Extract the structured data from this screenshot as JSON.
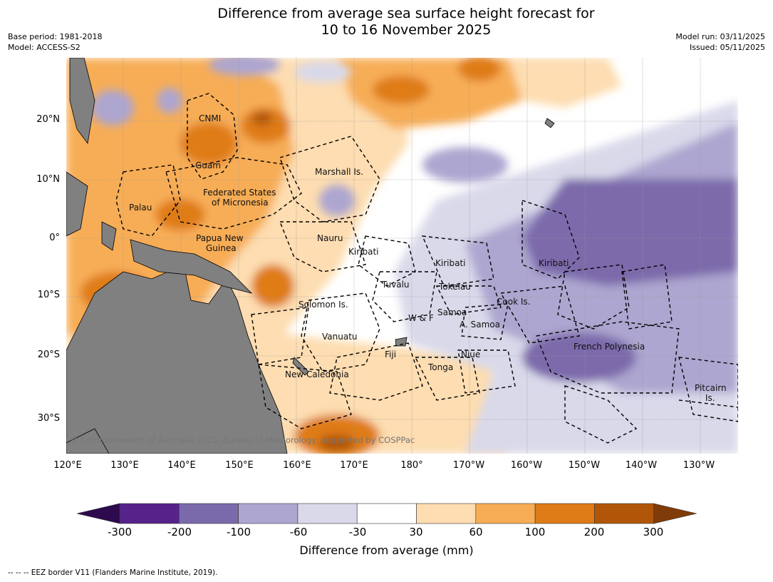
{
  "title": {
    "line1": "Difference from average sea surface height forecast for",
    "line2": "10 to 16 November 2025"
  },
  "meta": {
    "base_period": "Base period: 1981-2018",
    "model": "Model: ACCESS-S2",
    "model_run": "Model run: 03/11/2025",
    "issued": "Issued: 05/11/2025"
  },
  "axes": {
    "lat_ticks": [
      "20°N",
      "10°N",
      "0°",
      "10°S",
      "20°S",
      "30°S"
    ],
    "lon_ticks": [
      "120°E",
      "130°E",
      "140°E",
      "150°E",
      "160°E",
      "170°E",
      "180°",
      "170°W",
      "160°W",
      "150°W",
      "140°W",
      "130°W"
    ]
  },
  "places": [
    {
      "name": "CNMI"
    },
    {
      "name": "Guam"
    },
    {
      "name": "Marshall Is."
    },
    {
      "name": "Federated States"
    },
    {
      "name": "of Micronesia"
    },
    {
      "name": "Palau"
    },
    {
      "name": "Papua New"
    },
    {
      "name": "Guinea"
    },
    {
      "name": "Nauru"
    },
    {
      "name": "Kiribati"
    },
    {
      "name": "Kiribati"
    },
    {
      "name": "Kiribati"
    },
    {
      "name": "Tuvalu"
    },
    {
      "name": "Tokelau"
    },
    {
      "name": "Cook Is."
    },
    {
      "name": "Solomon Is."
    },
    {
      "name": "Samoa"
    },
    {
      "name": "W & F"
    },
    {
      "name": "A. Samoa"
    },
    {
      "name": "Vanuatu"
    },
    {
      "name": "Fiji"
    },
    {
      "name": "Niue"
    },
    {
      "name": "French Polynesia"
    },
    {
      "name": "Tonga"
    },
    {
      "name": "New Caledonia"
    },
    {
      "name": "Pitcairn"
    },
    {
      "name": "Is."
    }
  ],
  "copyright": "© Commonwealth of Australia 2025, Bureau of Meteorology, supported by COSPPac",
  "colorbar": {
    "labels": [
      "-300",
      "-200",
      "-100",
      "-60",
      "-30",
      "30",
      "60",
      "100",
      "200",
      "300"
    ],
    "colors": [
      "#2d0a4e",
      "#56238b",
      "#7b6aab",
      "#ada6d0",
      "#d9d9ea",
      "#ffffff",
      "#fdddb1",
      "#f7ad56",
      "#df7b17",
      "#b15608",
      "#7f3b08"
    ],
    "title": "Difference from average (mm)"
  },
  "legend_footer": "-- -- -- EEZ border V11 (Flanders Marine Institute, 2019).",
  "map_colors": {
    "land": "#808080",
    "ocean": "#ffffff",
    "eez": "#000000"
  }
}
